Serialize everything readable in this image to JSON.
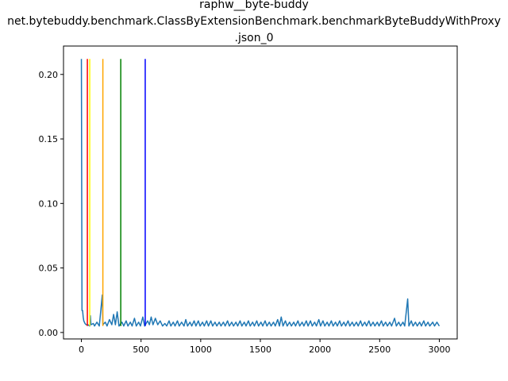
{
  "chart_data": {
    "type": "line",
    "title_lines": [
      "raphw__byte-buddy",
      "net.bytebuddy.benchmark.ClassByExtensionBenchmark.benchmarkByteBuddyWithProxy",
      ".json_0"
    ],
    "xlabel": "",
    "ylabel": "",
    "xlim": [
      -150,
      3150
    ],
    "ylim": [
      -0.005,
      0.222
    ],
    "x_ticks": [
      0,
      500,
      1000,
      1500,
      2000,
      2500,
      3000
    ],
    "x_tick_labels": [
      "0",
      "500",
      "1000",
      "1500",
      "2000",
      "2500",
      "3000"
    ],
    "y_ticks": [
      0.0,
      0.05,
      0.1,
      0.15,
      0.2
    ],
    "y_tick_labels": [
      "0.00",
      "0.05",
      "0.10",
      "0.15",
      "0.20"
    ],
    "grid": false,
    "series": [
      {
        "color": "#1f77b4",
        "points": [
          [
            0,
            0.212
          ],
          [
            5,
            0.017
          ],
          [
            10,
            0.017
          ],
          [
            15,
            0.012
          ],
          [
            20,
            0.009
          ],
          [
            30,
            0.007
          ],
          [
            40,
            0.006
          ],
          [
            55,
            0.006
          ],
          [
            70,
            0.005
          ],
          [
            75,
            0.013
          ],
          [
            80,
            0.006
          ],
          [
            100,
            0.007
          ],
          [
            110,
            0.005
          ],
          [
            130,
            0.008
          ],
          [
            150,
            0.005
          ],
          [
            175,
            0.029
          ],
          [
            180,
            0.006
          ],
          [
            200,
            0.008
          ],
          [
            215,
            0.005
          ],
          [
            235,
            0.01
          ],
          [
            255,
            0.006
          ],
          [
            270,
            0.014
          ],
          [
            285,
            0.006
          ],
          [
            300,
            0.016
          ],
          [
            315,
            0.005
          ],
          [
            340,
            0.008
          ],
          [
            355,
            0.005
          ],
          [
            375,
            0.009
          ],
          [
            390,
            0.005
          ],
          [
            410,
            0.008
          ],
          [
            425,
            0.005
          ],
          [
            445,
            0.011
          ],
          [
            460,
            0.005
          ],
          [
            480,
            0.008
          ],
          [
            495,
            0.005
          ],
          [
            515,
            0.012
          ],
          [
            530,
            0.005
          ],
          [
            555,
            0.009
          ],
          [
            570,
            0.006
          ],
          [
            585,
            0.012
          ],
          [
            600,
            0.006
          ],
          [
            620,
            0.011
          ],
          [
            640,
            0.006
          ],
          [
            660,
            0.009
          ],
          [
            680,
            0.005
          ],
          [
            700,
            0.007
          ],
          [
            715,
            0.005
          ],
          [
            735,
            0.009
          ],
          [
            750,
            0.005
          ],
          [
            770,
            0.008
          ],
          [
            785,
            0.005
          ],
          [
            805,
            0.009
          ],
          [
            820,
            0.005
          ],
          [
            840,
            0.008
          ],
          [
            860,
            0.005
          ],
          [
            875,
            0.01
          ],
          [
            890,
            0.005
          ],
          [
            910,
            0.008
          ],
          [
            925,
            0.005
          ],
          [
            945,
            0.009
          ],
          [
            960,
            0.005
          ],
          [
            980,
            0.009
          ],
          [
            995,
            0.005
          ],
          [
            1015,
            0.008
          ],
          [
            1030,
            0.005
          ],
          [
            1050,
            0.009
          ],
          [
            1065,
            0.005
          ],
          [
            1085,
            0.009
          ],
          [
            1100,
            0.005
          ],
          [
            1120,
            0.008
          ],
          [
            1135,
            0.005
          ],
          [
            1155,
            0.008
          ],
          [
            1170,
            0.005
          ],
          [
            1190,
            0.008
          ],
          [
            1205,
            0.005
          ],
          [
            1225,
            0.009
          ],
          [
            1240,
            0.005
          ],
          [
            1260,
            0.008
          ],
          [
            1275,
            0.005
          ],
          [
            1295,
            0.008
          ],
          [
            1310,
            0.005
          ],
          [
            1330,
            0.009
          ],
          [
            1345,
            0.005
          ],
          [
            1365,
            0.008
          ],
          [
            1380,
            0.005
          ],
          [
            1400,
            0.009
          ],
          [
            1415,
            0.005
          ],
          [
            1435,
            0.008
          ],
          [
            1450,
            0.005
          ],
          [
            1470,
            0.009
          ],
          [
            1485,
            0.005
          ],
          [
            1505,
            0.008
          ],
          [
            1520,
            0.005
          ],
          [
            1540,
            0.009
          ],
          [
            1555,
            0.005
          ],
          [
            1575,
            0.008
          ],
          [
            1590,
            0.005
          ],
          [
            1610,
            0.008
          ],
          [
            1625,
            0.005
          ],
          [
            1645,
            0.01
          ],
          [
            1660,
            0.005
          ],
          [
            1675,
            0.012
          ],
          [
            1690,
            0.005
          ],
          [
            1710,
            0.009
          ],
          [
            1725,
            0.005
          ],
          [
            1745,
            0.008
          ],
          [
            1760,
            0.005
          ],
          [
            1780,
            0.008
          ],
          [
            1795,
            0.005
          ],
          [
            1815,
            0.009
          ],
          [
            1830,
            0.005
          ],
          [
            1850,
            0.008
          ],
          [
            1865,
            0.005
          ],
          [
            1885,
            0.009
          ],
          [
            1900,
            0.005
          ],
          [
            1920,
            0.009
          ],
          [
            1935,
            0.005
          ],
          [
            1955,
            0.008
          ],
          [
            1970,
            0.005
          ],
          [
            1990,
            0.01
          ],
          [
            2005,
            0.005
          ],
          [
            2025,
            0.009
          ],
          [
            2040,
            0.005
          ],
          [
            2060,
            0.008
          ],
          [
            2075,
            0.005
          ],
          [
            2095,
            0.009
          ],
          [
            2110,
            0.005
          ],
          [
            2130,
            0.008
          ],
          [
            2145,
            0.005
          ],
          [
            2165,
            0.009
          ],
          [
            2180,
            0.005
          ],
          [
            2200,
            0.008
          ],
          [
            2215,
            0.005
          ],
          [
            2235,
            0.009
          ],
          [
            2250,
            0.005
          ],
          [
            2270,
            0.008
          ],
          [
            2285,
            0.005
          ],
          [
            2305,
            0.008
          ],
          [
            2320,
            0.005
          ],
          [
            2340,
            0.009
          ],
          [
            2355,
            0.005
          ],
          [
            2375,
            0.008
          ],
          [
            2390,
            0.005
          ],
          [
            2410,
            0.009
          ],
          [
            2425,
            0.005
          ],
          [
            2445,
            0.008
          ],
          [
            2460,
            0.005
          ],
          [
            2480,
            0.008
          ],
          [
            2495,
            0.005
          ],
          [
            2515,
            0.009
          ],
          [
            2530,
            0.005
          ],
          [
            2550,
            0.008
          ],
          [
            2565,
            0.005
          ],
          [
            2585,
            0.008
          ],
          [
            2600,
            0.005
          ],
          [
            2625,
            0.011
          ],
          [
            2640,
            0.005
          ],
          [
            2660,
            0.008
          ],
          [
            2675,
            0.005
          ],
          [
            2695,
            0.008
          ],
          [
            2710,
            0.005
          ],
          [
            2735,
            0.026
          ],
          [
            2745,
            0.005
          ],
          [
            2765,
            0.009
          ],
          [
            2780,
            0.005
          ],
          [
            2800,
            0.008
          ],
          [
            2815,
            0.005
          ],
          [
            2835,
            0.008
          ],
          [
            2850,
            0.005
          ],
          [
            2870,
            0.009
          ],
          [
            2885,
            0.005
          ],
          [
            2905,
            0.008
          ],
          [
            2920,
            0.005
          ],
          [
            2945,
            0.008
          ],
          [
            2960,
            0.005
          ],
          [
            2980,
            0.008
          ],
          [
            3000,
            0.005
          ]
        ]
      }
    ],
    "vertical_lines": [
      {
        "x": 50,
        "y_top": 0.212,
        "color": "#ff0000"
      },
      {
        "x": 70,
        "y_top": 0.212,
        "color": "#ffff00"
      },
      {
        "x": 180,
        "y_top": 0.212,
        "color": "#ffa500"
      },
      {
        "x": 330,
        "y_top": 0.212,
        "color": "#008000"
      },
      {
        "x": 535,
        "y_top": 0.212,
        "color": "#0000ff"
      }
    ]
  }
}
